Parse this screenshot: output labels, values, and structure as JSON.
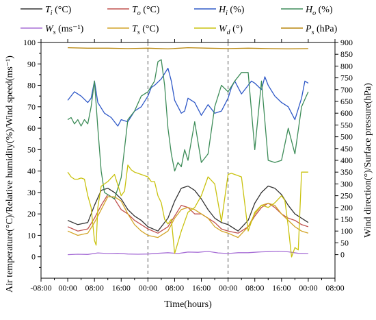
{
  "chart_data": {
    "type": "line",
    "xlabel": "Time(hours)",
    "ylabel_left": "Air temperature(°C)/Relative humidity(%)/Wind speed(ms⁻¹)",
    "ylabel_right": "Wind direction(°)/Surface pressure(hPa)",
    "x_tick_labels": [
      "-08:00",
      "00:00",
      "08:00",
      "16:00",
      "00:00",
      "08:00",
      "16:00",
      "00:00",
      "08:00",
      "16:00",
      "00:00",
      "08:00"
    ],
    "x_ticks_hours": [
      -8,
      0,
      8,
      16,
      24,
      32,
      40,
      48,
      56,
      64,
      72,
      80
    ],
    "xlim": [
      -8,
      80
    ],
    "ylim_left": [
      -10,
      100
    ],
    "yticks_left": [
      0,
      10,
      20,
      30,
      40,
      50,
      60,
      70,
      80,
      90,
      100
    ],
    "ylim_right": [
      -100,
      900
    ],
    "yticks_right": [
      0,
      50,
      100,
      150,
      200,
      250,
      300,
      350,
      400,
      450,
      500,
      550,
      600,
      650,
      700,
      750,
      800,
      850,
      900
    ],
    "day_dividers_hours": [
      24,
      48
    ],
    "legend": [
      {
        "key": "Ti",
        "symbol": "T",
        "sub": "i",
        "unit": " (°C)"
      },
      {
        "key": "To",
        "symbol": "T",
        "sub": "o",
        "unit": " (°C)"
      },
      {
        "key": "Hi",
        "symbol": "H",
        "sub": "i",
        "unit": " (%)"
      },
      {
        "key": "Ho",
        "symbol": "H",
        "sub": "o",
        "unit": " (%)"
      },
      {
        "key": "Ws",
        "symbol": "W",
        "sub": "s",
        "unit": " (ms⁻¹)"
      },
      {
        "key": "Ts",
        "symbol": "T",
        "sub": "s",
        "unit": " (°C)"
      },
      {
        "key": "Wd",
        "symbol": "W",
        "sub": "d",
        "unit": " (°)"
      },
      {
        "key": "Ps",
        "symbol": "P",
        "sub": "s",
        "unit": " (hPa)"
      }
    ],
    "series": [
      {
        "key": "Ti",
        "color": "#333333",
        "axis": "left",
        "x": [
          0,
          3,
          6,
          8,
          10,
          12,
          14,
          16,
          18,
          20,
          22,
          24,
          27,
          30,
          32,
          34,
          36,
          38,
          40,
          42,
          44,
          46,
          48,
          51,
          54,
          56,
          58,
          60,
          62,
          64,
          66,
          68,
          70,
          72
        ],
        "y": [
          17,
          15,
          16,
          24,
          31,
          32,
          30,
          27,
          22,
          19,
          17,
          14,
          12,
          18,
          26,
          32,
          33,
          31,
          27,
          22,
          18,
          16,
          15,
          12,
          17,
          25,
          30,
          33,
          32,
          29,
          24,
          20,
          18,
          16
        ]
      },
      {
        "key": "To",
        "color": "#c0504d",
        "axis": "left",
        "x": [
          0,
          3,
          6,
          8,
          10,
          12,
          14,
          16,
          18,
          20,
          22,
          24,
          27,
          30,
          32,
          34,
          36,
          38,
          40,
          42,
          44,
          46,
          48,
          51,
          54,
          56,
          58,
          60,
          62,
          64,
          66,
          68,
          70,
          72
        ],
        "y": [
          14,
          12,
          13,
          18,
          24,
          29,
          27,
          22,
          20,
          17,
          15,
          13,
          11,
          14,
          19,
          24,
          23,
          20,
          20,
          18,
          16,
          13,
          12,
          11,
          14,
          19,
          23,
          25,
          23,
          20,
          18,
          17,
          15,
          14
        ]
      },
      {
        "key": "Hi",
        "color": "#2e58c7",
        "axis": "left",
        "x": [
          0,
          2,
          4,
          6,
          7,
          8,
          9,
          11,
          13,
          15,
          16,
          18,
          20,
          22,
          24,
          25,
          26,
          28,
          30,
          31,
          32,
          34,
          35,
          36,
          38,
          40,
          42,
          44,
          46,
          48,
          49,
          50,
          52,
          54,
          55,
          56,
          58,
          59,
          60,
          62,
          64,
          66,
          68,
          70,
          71,
          72
        ],
        "y": [
          73,
          77,
          75,
          72,
          74,
          82,
          72,
          67,
          65,
          61,
          64,
          63,
          68,
          70,
          75,
          79,
          80,
          83,
          88,
          82,
          73,
          67,
          68,
          74,
          72,
          66,
          71,
          67,
          68,
          74,
          79,
          82,
          76,
          80,
          82,
          81,
          78,
          84,
          80,
          75,
          72,
          70,
          64,
          74,
          82,
          81
        ]
      },
      {
        "key": "Ho",
        "color": "#3d8c58",
        "axis": "left",
        "x": [
          0,
          1,
          2,
          3,
          4,
          5,
          6,
          7,
          8,
          9,
          10,
          11,
          12,
          14,
          16,
          18,
          20,
          22,
          24,
          26,
          27,
          28,
          29,
          30,
          31,
          32,
          33,
          34,
          35,
          36,
          38,
          40,
          42,
          44,
          46,
          48,
          50,
          52,
          54,
          56,
          58,
          60,
          62,
          64,
          66,
          68,
          70,
          72
        ],
        "y": [
          64,
          65,
          62,
          64,
          61,
          64,
          62,
          70,
          82,
          60,
          40,
          30,
          29,
          27,
          37,
          64,
          68,
          75,
          77,
          82,
          91,
          92,
          80,
          60,
          48,
          40,
          44,
          42,
          50,
          45,
          63,
          44,
          48,
          70,
          80,
          77,
          82,
          86,
          86,
          50,
          82,
          45,
          44,
          45,
          60,
          48,
          70,
          77
        ]
      },
      {
        "key": "Ws",
        "color": "#a76fd6",
        "axis": "left",
        "x": [
          0,
          3,
          6,
          9,
          12,
          15,
          18,
          21,
          24,
          27,
          30,
          33,
          36,
          39,
          42,
          45,
          48,
          51,
          54,
          57,
          60,
          63,
          66,
          69,
          72
        ],
        "y": [
          1.0,
          1.2,
          1.1,
          1.8,
          1.5,
          1.6,
          1.3,
          1.2,
          1.3,
          1.6,
          1.9,
          1.5,
          2.2,
          2.1,
          2.5,
          1.8,
          1.5,
          1.9,
          1.9,
          2.2,
          2.4,
          2.6,
          2.3,
          1.6,
          1.5
        ]
      },
      {
        "key": "Ts",
        "color": "#d2a426",
        "axis": "left",
        "x": [
          0,
          3,
          6,
          8,
          10,
          12,
          14,
          16,
          18,
          20,
          22,
          24,
          27,
          30,
          32,
          34,
          36,
          38,
          40,
          42,
          44,
          46,
          48,
          51,
          54,
          56,
          58,
          60,
          62,
          64,
          66,
          68,
          70,
          72
        ],
        "y": [
          12,
          10,
          11,
          16,
          22,
          28,
          28,
          26,
          20,
          15,
          12,
          10,
          9,
          12,
          18,
          22,
          23,
          22,
          20,
          18,
          14,
          12,
          11,
          9,
          14,
          20,
          24,
          25,
          24,
          20,
          17,
          14,
          12,
          11
        ]
      },
      {
        "key": "Wd",
        "color": "#c9c20e",
        "axis": "right",
        "x": [
          0,
          1,
          2,
          3,
          4,
          5,
          6,
          7,
          8,
          8.5,
          9,
          10,
          11,
          12,
          14,
          16,
          17,
          18,
          19,
          20,
          21,
          22,
          24,
          25,
          26,
          27,
          28,
          29,
          30,
          31,
          32,
          34,
          36,
          38,
          40,
          42,
          44,
          46,
          48,
          49,
          50,
          52,
          54,
          56,
          58,
          60,
          62,
          64,
          65,
          66,
          67,
          68,
          69,
          70,
          71,
          72
        ],
        "y": [
          350,
          330,
          320,
          320,
          325,
          320,
          250,
          200,
          60,
          40,
          200,
          290,
          300,
          310,
          340,
          250,
          270,
          380,
          360,
          350,
          345,
          340,
          330,
          310,
          310,
          250,
          220,
          150,
          130,
          150,
          5,
          100,
          180,
          200,
          250,
          330,
          300,
          140,
          340,
          345,
          340,
          330,
          100,
          180,
          210,
          200,
          220,
          250,
          230,
          120,
          -10,
          30,
          20,
          350,
          350,
          350
        ]
      },
      {
        "key": "Ps",
        "color": "#b8860b",
        "axis": "right",
        "x": [
          0,
          6,
          12,
          18,
          24,
          30,
          36,
          42,
          48,
          54,
          60,
          66,
          72
        ],
        "y": [
          878,
          876,
          876,
          874,
          876,
          873,
          878,
          876,
          874,
          876,
          874,
          873,
          874
        ]
      }
    ]
  }
}
